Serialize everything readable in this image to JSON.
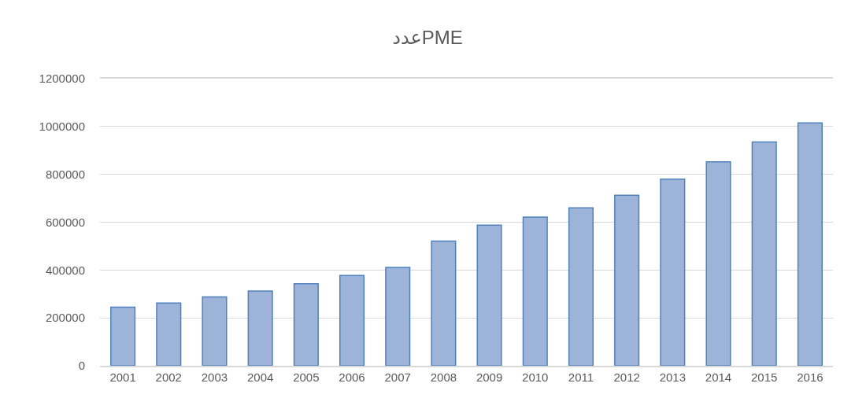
{
  "chart_data": {
    "type": "bar",
    "title": "عددPME",
    "categories": [
      "2001",
      "2002",
      "2003",
      "2004",
      "2005",
      "2006",
      "2007",
      "2008",
      "2009",
      "2010",
      "2011",
      "2012",
      "2013",
      "2014",
      "2015",
      "2016"
    ],
    "values": [
      245000,
      262000,
      288000,
      312000,
      343000,
      377000,
      411000,
      521000,
      588000,
      621000,
      660000,
      713000,
      780000,
      852000,
      935000,
      1015000
    ],
    "color": "#9db3d8",
    "ylim": [
      0,
      1200000
    ],
    "yticks": [
      0,
      200000,
      400000,
      600000,
      800000,
      1000000,
      1200000
    ],
    "grid": "y"
  }
}
